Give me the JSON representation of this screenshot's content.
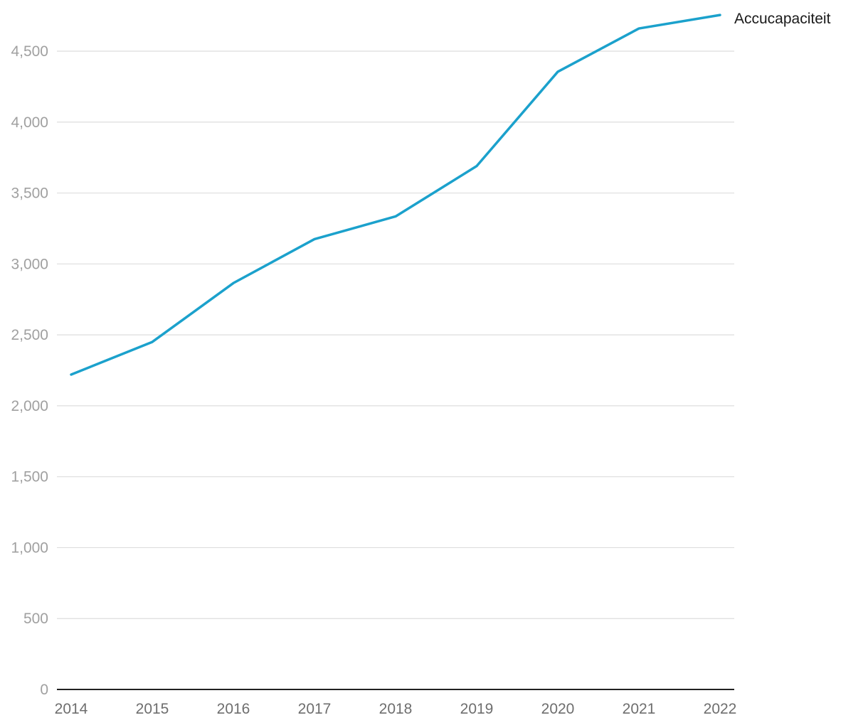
{
  "chart_data": {
    "type": "line",
    "title": "",
    "xlabel": "",
    "ylabel": "",
    "x": [
      "2014",
      "2015",
      "2016",
      "2017",
      "2018",
      "2019",
      "2020",
      "2021",
      "2022"
    ],
    "series": [
      {
        "name": "Accucapaciteit",
        "color": "#1ba1cc",
        "values": [
          2220,
          2450,
          2865,
          3175,
          3335,
          3690,
          4355,
          4660,
          4755
        ]
      }
    ],
    "ylim": [
      0,
      4750
    ],
    "yticks": [
      0,
      500,
      1000,
      1500,
      2000,
      2500,
      3000,
      3500,
      4000,
      4500
    ],
    "ytick_labels": [
      "0",
      "500",
      "1,000",
      "1,500",
      "2,000",
      "2,500",
      "3,000",
      "3,500",
      "4,000",
      "4,500"
    ],
    "grid": true,
    "legend": "direct-label-end"
  }
}
